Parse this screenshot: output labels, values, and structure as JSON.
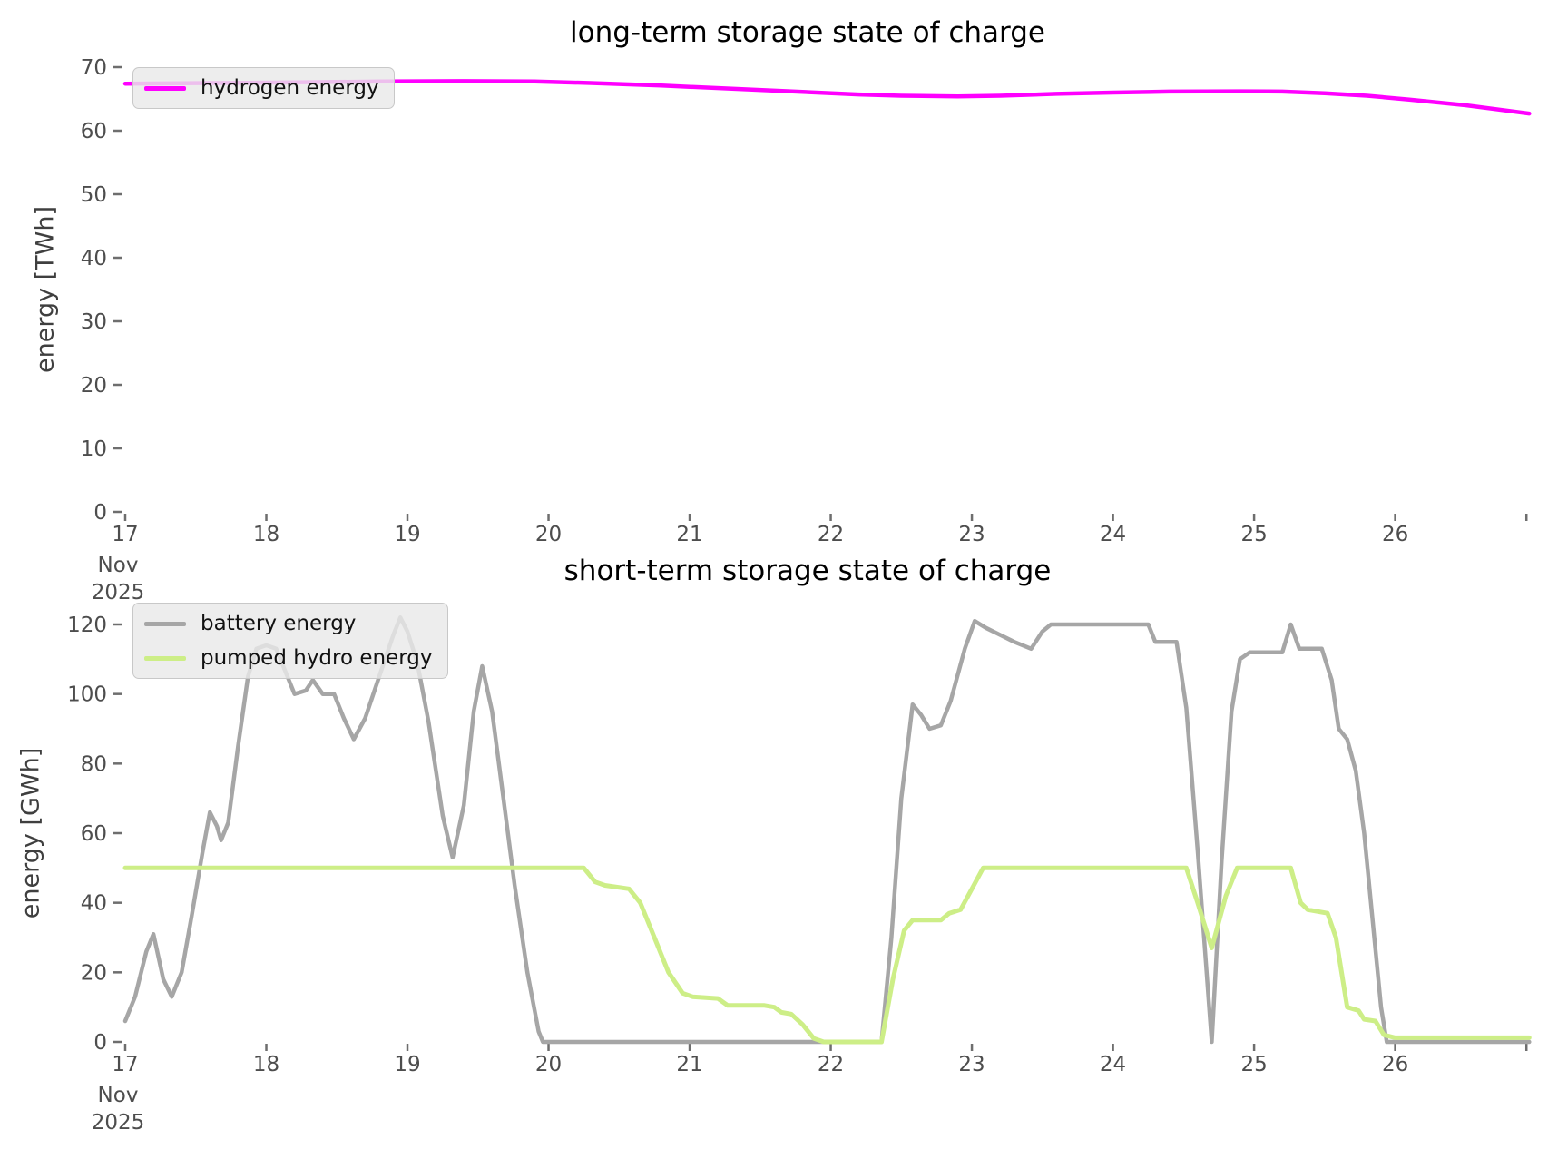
{
  "figure": {
    "background": "#ffffff"
  },
  "styles": {
    "tick_mark_color": "#6e6e6e",
    "tick_label_color": "#4d4d4d",
    "axis_label_color": "#3f3f3f",
    "title_color": "#000000",
    "legend_background": "rgba(233,233,233,0.82)",
    "legend_border": "#c8c8c8"
  },
  "chart_data": [
    {
      "type": "line",
      "title": "long-term storage state of charge",
      "ylabel": "energy [TWh]",
      "xlabel": "",
      "grid": false,
      "legend_position": "upper left",
      "xlim": [
        17,
        26.98
      ],
      "ylim": [
        0,
        70
      ],
      "y_ticks": [
        {
          "v": 0,
          "label": "0"
        },
        {
          "v": 10,
          "label": "10"
        },
        {
          "v": 20,
          "label": "20"
        },
        {
          "v": 30,
          "label": "30"
        },
        {
          "v": 40,
          "label": "40"
        },
        {
          "v": 50,
          "label": "50"
        },
        {
          "v": 60,
          "label": "60"
        },
        {
          "v": 70,
          "label": "70"
        }
      ],
      "x_ticks": [
        {
          "v": 17,
          "label": "17"
        },
        {
          "v": 18,
          "label": "18"
        },
        {
          "v": 19,
          "label": "19"
        },
        {
          "v": 20,
          "label": "20"
        },
        {
          "v": 21,
          "label": "21"
        },
        {
          "v": 22,
          "label": "22"
        },
        {
          "v": 23,
          "label": "23"
        },
        {
          "v": 24,
          "label": "24"
        },
        {
          "v": 25,
          "label": "25"
        },
        {
          "v": 26,
          "label": "26"
        },
        {
          "v": 26.93,
          "label": ""
        }
      ],
      "x_month": "Nov",
      "x_year": "2025",
      "series": [
        {
          "name": "hydrogen energy",
          "color": "#ff00ff",
          "width": 4.5,
          "points": [
            [
              17.0,
              67.4
            ],
            [
              17.6,
              67.5
            ],
            [
              18.2,
              67.6
            ],
            [
              18.8,
              67.75
            ],
            [
              19.4,
              67.8
            ],
            [
              19.9,
              67.75
            ],
            [
              20.3,
              67.5
            ],
            [
              20.8,
              67.1
            ],
            [
              21.3,
              66.6
            ],
            [
              21.8,
              66.1
            ],
            [
              22.2,
              65.7
            ],
            [
              22.5,
              65.5
            ],
            [
              22.9,
              65.4
            ],
            [
              23.2,
              65.5
            ],
            [
              23.6,
              65.8
            ],
            [
              24.0,
              66.0
            ],
            [
              24.4,
              66.15
            ],
            [
              24.9,
              66.2
            ],
            [
              25.2,
              66.15
            ],
            [
              25.5,
              65.9
            ],
            [
              25.8,
              65.5
            ],
            [
              26.1,
              64.9
            ],
            [
              26.5,
              64.0
            ],
            [
              26.95,
              62.7
            ]
          ]
        }
      ]
    },
    {
      "type": "line",
      "title": "short-term storage state of charge",
      "ylabel": "energy [GWh]",
      "xlabel": "",
      "grid": false,
      "legend_position": "upper left",
      "xlim": [
        17,
        26.98
      ],
      "ylim": [
        0,
        120
      ],
      "y_ticks": [
        {
          "v": 0,
          "label": "0"
        },
        {
          "v": 20,
          "label": "20"
        },
        {
          "v": 40,
          "label": "40"
        },
        {
          "v": 60,
          "label": "60"
        },
        {
          "v": 80,
          "label": "80"
        },
        {
          "v": 100,
          "label": "100"
        },
        {
          "v": 120,
          "label": "120"
        }
      ],
      "x_ticks": [
        {
          "v": 17,
          "label": "17"
        },
        {
          "v": 18,
          "label": "18"
        },
        {
          "v": 19,
          "label": "19"
        },
        {
          "v": 20,
          "label": "20"
        },
        {
          "v": 21,
          "label": "21"
        },
        {
          "v": 22,
          "label": "22"
        },
        {
          "v": 23,
          "label": "23"
        },
        {
          "v": 24,
          "label": "24"
        },
        {
          "v": 25,
          "label": "25"
        },
        {
          "v": 26,
          "label": "26"
        },
        {
          "v": 26.93,
          "label": ""
        }
      ],
      "x_month": "Nov",
      "x_year": "2025",
      "series": [
        {
          "name": "battery energy",
          "color": "#a6a6a6",
          "width": 4.5,
          "points": [
            [
              17.0,
              6
            ],
            [
              17.07,
              13
            ],
            [
              17.15,
              26
            ],
            [
              17.2,
              31
            ],
            [
              17.27,
              18
            ],
            [
              17.33,
              13
            ],
            [
              17.4,
              20
            ],
            [
              17.47,
              36
            ],
            [
              17.55,
              55
            ],
            [
              17.6,
              66
            ],
            [
              17.65,
              62
            ],
            [
              17.68,
              58
            ],
            [
              17.73,
              63
            ],
            [
              17.8,
              85
            ],
            [
              17.87,
              105
            ],
            [
              17.93,
              113
            ],
            [
              18.0,
              114
            ],
            [
              18.07,
              113
            ],
            [
              18.13,
              107
            ],
            [
              18.2,
              100
            ],
            [
              18.28,
              101
            ],
            [
              18.33,
              104
            ],
            [
              18.4,
              100
            ],
            [
              18.48,
              100
            ],
            [
              18.55,
              93
            ],
            [
              18.62,
              87
            ],
            [
              18.7,
              93
            ],
            [
              18.8,
              105
            ],
            [
              18.9,
              117
            ],
            [
              18.95,
              122
            ],
            [
              19.0,
              118
            ],
            [
              19.07,
              109
            ],
            [
              19.15,
              92
            ],
            [
              19.25,
              65
            ],
            [
              19.32,
              53
            ],
            [
              19.4,
              68
            ],
            [
              19.47,
              95
            ],
            [
              19.53,
              108
            ],
            [
              19.6,
              95
            ],
            [
              19.68,
              70
            ],
            [
              19.76,
              45
            ],
            [
              19.85,
              20
            ],
            [
              19.93,
              3
            ],
            [
              19.96,
              0
            ],
            [
              22.36,
              0
            ],
            [
              22.43,
              30
            ],
            [
              22.5,
              70
            ],
            [
              22.58,
              97
            ],
            [
              22.64,
              94
            ],
            [
              22.7,
              90
            ],
            [
              22.78,
              91
            ],
            [
              22.85,
              98
            ],
            [
              22.95,
              113
            ],
            [
              23.02,
              121
            ],
            [
              23.1,
              119
            ],
            [
              23.2,
              117
            ],
            [
              23.3,
              115
            ],
            [
              23.42,
              113
            ],
            [
              23.5,
              118
            ],
            [
              23.56,
              120
            ],
            [
              24.25,
              120
            ],
            [
              24.3,
              115
            ],
            [
              24.45,
              115
            ],
            [
              24.52,
              96
            ],
            [
              24.6,
              55
            ],
            [
              24.7,
              0
            ],
            [
              24.77,
              52
            ],
            [
              24.84,
              95
            ],
            [
              24.9,
              110
            ],
            [
              24.97,
              112
            ],
            [
              25.2,
              112
            ],
            [
              25.26,
              120
            ],
            [
              25.32,
              113
            ],
            [
              25.48,
              113
            ],
            [
              25.55,
              104
            ],
            [
              25.6,
              90
            ],
            [
              25.66,
              87
            ],
            [
              25.72,
              78
            ],
            [
              25.78,
              60
            ],
            [
              25.84,
              35
            ],
            [
              25.9,
              10
            ],
            [
              25.94,
              0
            ],
            [
              26.95,
              0
            ]
          ]
        },
        {
          "name": "pumped hydro energy",
          "color": "#cdee87",
          "width": 5,
          "points": [
            [
              17.0,
              50
            ],
            [
              20.25,
              50
            ],
            [
              20.33,
              46
            ],
            [
              20.4,
              45
            ],
            [
              20.57,
              44
            ],
            [
              20.65,
              40
            ],
            [
              20.75,
              30
            ],
            [
              20.85,
              20
            ],
            [
              20.95,
              14
            ],
            [
              21.02,
              13
            ],
            [
              21.2,
              12.5
            ],
            [
              21.27,
              10.5
            ],
            [
              21.53,
              10.5
            ],
            [
              21.6,
              10
            ],
            [
              21.65,
              8.5
            ],
            [
              21.72,
              8
            ],
            [
              21.8,
              5
            ],
            [
              21.88,
              1
            ],
            [
              21.95,
              0
            ],
            [
              22.36,
              0
            ],
            [
              22.44,
              18
            ],
            [
              22.52,
              32
            ],
            [
              22.58,
              35
            ],
            [
              22.78,
              35
            ],
            [
              22.84,
              37
            ],
            [
              22.92,
              38
            ],
            [
              23.0,
              44
            ],
            [
              23.08,
              50
            ],
            [
              24.52,
              50
            ],
            [
              24.6,
              40
            ],
            [
              24.7,
              27
            ],
            [
              24.8,
              42
            ],
            [
              24.88,
              50
            ],
            [
              25.26,
              50
            ],
            [
              25.33,
              40
            ],
            [
              25.38,
              38
            ],
            [
              25.52,
              37
            ],
            [
              25.58,
              30
            ],
            [
              25.66,
              10
            ],
            [
              25.74,
              9
            ],
            [
              25.78,
              6.5
            ],
            [
              25.86,
              6
            ],
            [
              25.92,
              2
            ],
            [
              26.0,
              1.2
            ],
            [
              26.95,
              1.2
            ]
          ]
        }
      ]
    }
  ]
}
